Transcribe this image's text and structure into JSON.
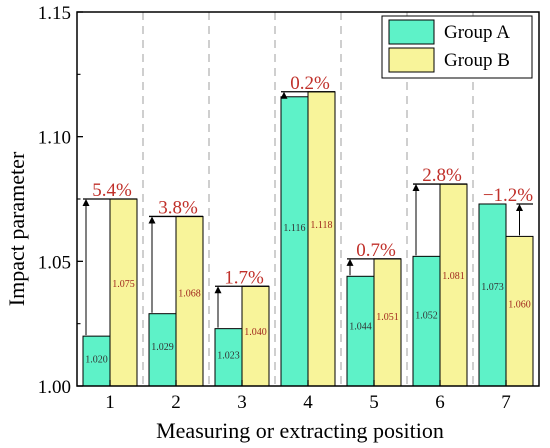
{
  "chart_data": {
    "type": "bar",
    "xlabel": "Measuring or extracting position",
    "ylabel": "Impact parameter",
    "ylim": [
      1.0,
      1.15
    ],
    "yticks": [
      "1.00",
      "1.05",
      "1.10",
      "1.15"
    ],
    "categories": [
      "1",
      "2",
      "3",
      "4",
      "5",
      "6",
      "7"
    ],
    "series": [
      {
        "name": "Group A",
        "color": "#5ef2c8",
        "values": [
          1.02,
          1.029,
          1.023,
          1.116,
          1.044,
          1.052,
          1.073
        ],
        "labels": [
          "1.020",
          "1.029",
          "1.023",
          "1.116",
          "1.044",
          "1.052",
          "1.073"
        ]
      },
      {
        "name": "Group B",
        "color": "#f8f49a",
        "values": [
          1.075,
          1.068,
          1.04,
          1.118,
          1.051,
          1.081,
          1.06
        ],
        "labels": [
          "1.075",
          "1.068",
          "1.040",
          "1.118",
          "1.051",
          "1.081",
          "1.060"
        ]
      }
    ],
    "differences": [
      "5.4%",
      "3.8%",
      "1.7%",
      "0.2%",
      "0.7%",
      "2.8%",
      "−1.2%"
    ],
    "grid": "vertical dashed separators",
    "legend_position": "top-right"
  }
}
